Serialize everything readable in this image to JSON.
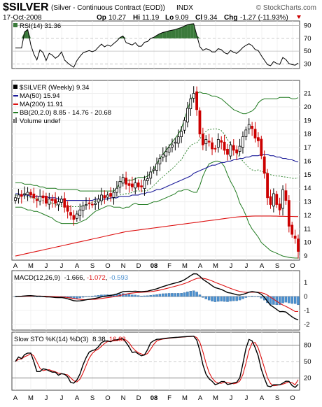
{
  "header": {
    "symbol": "$SILVER",
    "name": "(Silver - Continuous Contract (EOD))",
    "exchange": "INDX",
    "date": "17-Oct-2008",
    "watermark": "© StockCharts.com",
    "quote": {
      "open_label": "Op",
      "open": "10.27",
      "high_label": "Hi",
      "high": "11.19",
      "low_label": "Lo",
      "low": "9.09",
      "close_label": "Cl",
      "close": "9.34",
      "change_label": "Chg",
      "change": "-1.27 (-11.93%)"
    }
  },
  "rsi": {
    "label": "RSI(14) 31.36",
    "ticks": [
      30,
      50,
      70,
      90
    ],
    "ylim": [
      25,
      95
    ],
    "overbought": 70,
    "oversold": 30
  },
  "price": {
    "label": "$SILVER (Weekly) 9.34",
    "ma50_label": "MA(50) 15.94",
    "ma200_label": "MA(200) 11.91",
    "bb_label": "BB(20,2.0) 8.85 - 14.76 - 20.68",
    "volume_label": "Volume undef",
    "ticks": [
      9,
      10,
      11,
      12,
      13,
      14,
      15,
      16,
      17,
      18,
      19,
      20,
      21
    ],
    "ylim": [
      8.8,
      21.8
    ]
  },
  "x_axis": {
    "labels": [
      "A",
      "M",
      "J",
      "J",
      "A",
      "S",
      "O",
      "N",
      "D",
      "08",
      "F",
      "M",
      "A",
      "M",
      "J",
      "J",
      "A",
      "S",
      "O"
    ]
  },
  "macd": {
    "label_prefix": "MACD(12,26,9)",
    "macd_value": "-1.666",
    "signal_value": "-1.072",
    "hist_value": "-0.593",
    "ticks": [
      -2,
      -1,
      0,
      1
    ],
    "ylim": [
      -2.3,
      1.7
    ]
  },
  "sto": {
    "label_prefix": "Slow STO %K(14) %D(3)",
    "k_value": "8.38",
    "d_value": "16.83",
    "ticks": [
      20,
      50,
      80
    ],
    "ylim": [
      0,
      100
    ]
  },
  "colors": {
    "candle_up": "#000000",
    "candle_down": "#cc0000",
    "ma50": "#1a1a99",
    "ma200": "#dd1111",
    "bb": "#1f7a1f",
    "bb_mid": "#1f7a1f",
    "macd": "#000000",
    "signal": "#dd1111",
    "hist": "#4a90d0",
    "rsi": "#000000",
    "rsi_fill": "#3a7a3a",
    "k": "#000000",
    "d": "#dd1111"
  },
  "chart_data": {
    "type": "candlestick",
    "interval": "weekly",
    "period": "Apr 2007 - Oct 2008",
    "close": [
      13.3,
      13.5,
      13.4,
      13.6,
      13.7,
      13.5,
      13.3,
      13.1,
      13.4,
      13.3,
      12.9,
      13.2,
      13.1,
      12.9,
      13.0,
      13.2,
      12.6,
      12.3,
      12.0,
      11.7,
      12.1,
      12.4,
      12.7,
      12.8,
      12.9,
      12.8,
      12.9,
      13.2,
      13.5,
      13.3,
      13.5,
      13.4,
      13.7,
      14.0,
      14.5,
      14.8,
      14.3,
      14.2,
      14.1,
      14.4,
      14.1,
      14.1,
      14.6,
      14.7,
      15.2,
      15.4,
      15.8,
      16.2,
      16.5,
      16.7,
      17.0,
      17.2,
      17.4,
      17.8,
      18.2,
      19.0,
      19.9,
      20.6,
      21.0,
      19.8,
      18.0,
      17.2,
      17.6,
      17.4,
      16.9,
      16.9,
      17.6,
      17.4,
      16.8,
      16.5,
      17.2,
      16.8,
      16.6,
      17.1,
      17.8,
      18.3,
      18.7,
      18.4,
      17.7,
      17.5,
      16.4,
      15.1,
      13.3,
      12.8,
      13.6,
      12.8,
      12.4,
      13.9,
      13.1,
      11.2,
      10.6,
      10.3,
      9.34
    ],
    "ma50": [
      13.6,
      13.6,
      13.5,
      13.5,
      13.5,
      13.4,
      13.4,
      13.4,
      13.4,
      13.4,
      13.4,
      13.3,
      13.3,
      13.3,
      13.2,
      13.2,
      13.1,
      13.1,
      13.1,
      13.1,
      13.1,
      13.1,
      13.1,
      13.1,
      13.1,
      13.1,
      13.2,
      13.2,
      13.2,
      13.2,
      13.2,
      13.3,
      13.3,
      13.3,
      13.4,
      13.4,
      13.4,
      13.4,
      13.5,
      13.5,
      13.5,
      13.6,
      13.6,
      13.7,
      13.7,
      13.8,
      13.9,
      13.9,
      14.0,
      14.1,
      14.2,
      14.3,
      14.4,
      14.5,
      14.6,
      14.7,
      14.8,
      14.9,
      15.1,
      15.2,
      15.3,
      15.4,
      15.5,
      15.6,
      15.7,
      15.7,
      15.8,
      15.9,
      15.9,
      16.0,
      16.0,
      16.1,
      16.1,
      16.2,
      16.2,
      16.3,
      16.3,
      16.4,
      16.4,
      16.4,
      16.5,
      16.5,
      16.5,
      16.4,
      16.4,
      16.3,
      16.3,
      16.2,
      16.2,
      16.1,
      16.1,
      16.0,
      15.94
    ],
    "ma200": [
      9.0,
      9.05,
      9.1,
      9.15,
      9.2,
      9.25,
      9.3,
      9.35,
      9.4,
      9.45,
      9.5,
      9.55,
      9.6,
      9.65,
      9.7,
      9.75,
      9.8,
      9.85,
      9.9,
      9.95,
      10.0,
      10.05,
      10.1,
      10.15,
      10.2,
      10.25,
      10.3,
      10.35,
      10.4,
      10.45,
      10.5,
      10.55,
      10.6,
      10.65,
      10.7,
      10.75,
      10.8,
      10.83,
      10.86,
      10.89,
      10.92,
      10.95,
      10.98,
      11.01,
      11.04,
      11.07,
      11.1,
      11.13,
      11.16,
      11.19,
      11.22,
      11.25,
      11.28,
      11.31,
      11.34,
      11.37,
      11.4,
      11.43,
      11.46,
      11.49,
      11.52,
      11.55,
      11.58,
      11.61,
      11.64,
      11.67,
      11.7,
      11.73,
      11.76,
      11.79,
      11.82,
      11.85,
      11.88,
      11.9,
      11.91,
      11.92,
      11.93,
      11.94,
      11.95,
      11.95,
      11.95,
      11.95,
      11.95,
      11.95,
      11.94,
      11.94,
      11.93,
      11.93,
      11.92,
      11.92,
      11.92,
      11.91,
      11.91
    ],
    "bb_upper": [
      14.4,
      14.4,
      14.4,
      14.3,
      14.3,
      14.3,
      14.2,
      14.2,
      14.1,
      14.1,
      14.0,
      14.0,
      14.0,
      14.0,
      13.9,
      13.9,
      13.9,
      13.9,
      13.9,
      13.9,
      13.9,
      13.8,
      13.8,
      13.8,
      13.8,
      13.8,
      13.8,
      13.8,
      13.8,
      13.8,
      13.8,
      13.8,
      13.8,
      14.0,
      14.4,
      14.6,
      14.6,
      14.6,
      14.6,
      14.7,
      14.8,
      14.8,
      14.8,
      14.9,
      15.1,
      15.4,
      15.8,
      16.2,
      16.5,
      16.8,
      17.1,
      17.4,
      17.7,
      18.0,
      18.4,
      19.1,
      19.8,
      20.5,
      20.9,
      21.0,
      21.1,
      21.0,
      21.0,
      20.9,
      20.8,
      20.8,
      20.7,
      20.6,
      20.4,
      20.2,
      20.0,
      19.8,
      19.7,
      19.6,
      19.5,
      19.5,
      19.6,
      19.7,
      19.9,
      20.3,
      20.5,
      20.6,
      20.6,
      20.6,
      20.6,
      20.6,
      20.7,
      20.7,
      20.7,
      20.7,
      20.6,
      20.6,
      20.68
    ],
    "bb_lower": [
      12.6,
      12.6,
      12.6,
      12.5,
      12.4,
      12.4,
      12.3,
      12.3,
      12.2,
      12.1,
      12.0,
      11.9,
      11.8,
      11.6,
      11.5,
      11.4,
      11.4,
      11.4,
      11.4,
      11.4,
      11.4,
      11.5,
      11.6,
      11.7,
      11.9,
      12.1,
      12.3,
      12.4,
      12.5,
      12.6,
      12.7,
      12.7,
      12.6,
      12.6,
      12.6,
      12.5,
      12.6,
      12.6,
      12.8,
      12.9,
      12.8,
      12.8,
      12.8,
      12.8,
      12.9,
      13.0,
      13.0,
      13.1,
      13.2,
      13.3,
      13.4,
      13.5,
      13.6,
      13.8,
      13.8,
      13.9,
      13.9,
      13.8,
      13.7,
      13.7,
      14.2,
      14.9,
      15.4,
      15.8,
      15.9,
      16.0,
      16.0,
      15.9,
      15.6,
      15.0,
      14.5,
      14.1,
      13.6,
      12.9,
      12.5,
      12.0,
      11.4,
      11.0,
      10.7,
      10.4,
      10.0,
      9.8,
      9.6,
      9.4,
      9.3,
      9.2,
      9.1,
      9.0,
      8.95,
      8.9,
      8.87,
      8.85,
      8.85
    ]
  }
}
